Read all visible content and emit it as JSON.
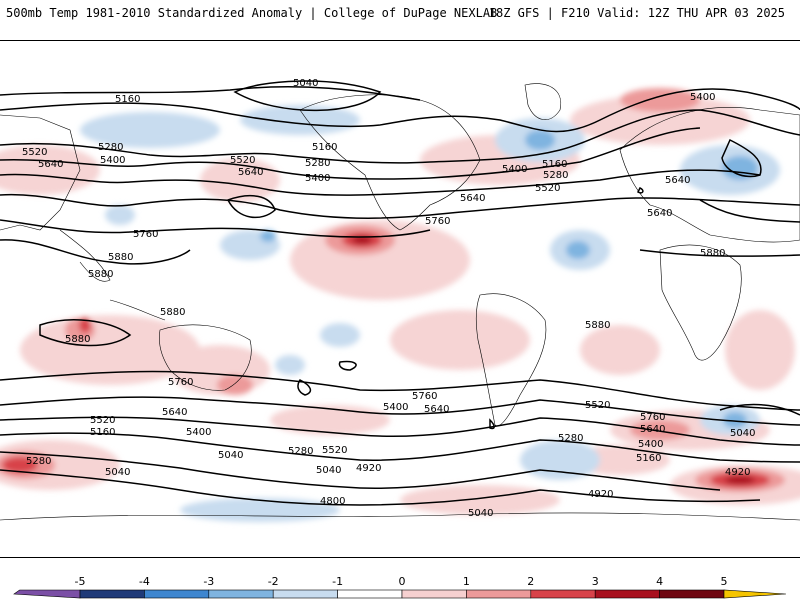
{
  "header": {
    "title_left": "500mb Temp 1981-2010 Standardized Anomaly | College of DuPage NEXLAB",
    "title_right": "18Z GFS | F210 Valid: 12Z THU APR 03 2025"
  },
  "colorbar": {
    "ticks": [
      "-5",
      "-4",
      "-3",
      "-2",
      "-1",
      "0",
      "1",
      "2",
      "3",
      "4",
      "5"
    ],
    "colors": [
      "#7b4fa6",
      "#1f3a78",
      "#3e86cf",
      "#7fb4e0",
      "#c8dcef",
      "#ffffff",
      "#f6d0d0",
      "#ec9a9a",
      "#d8434a",
      "#a8101e",
      "#6e0611",
      "#f5c400"
    ]
  },
  "contour_labels": [
    "5040",
    "5160",
    "5520",
    "5280",
    "5640",
    "5400",
    "5520",
    "5280",
    "5640",
    "5400",
    "5160",
    "5400",
    "5160",
    "5520",
    "5280",
    "5640",
    "5400",
    "5640",
    "5640",
    "5760",
    "5760",
    "5880",
    "5880",
    "5880",
    "5880",
    "5880",
    "5880",
    "5760",
    "5640",
    "5760",
    "5400",
    "5640",
    "5520",
    "5760",
    "5640",
    "5040",
    "5400",
    "5520",
    "5160",
    "5400",
    "5040",
    "5280",
    "5520",
    "5280",
    "5160",
    "5040",
    "4920",
    "5040",
    "4920",
    "4920",
    "4800",
    "5040",
    "5280"
  ]
}
